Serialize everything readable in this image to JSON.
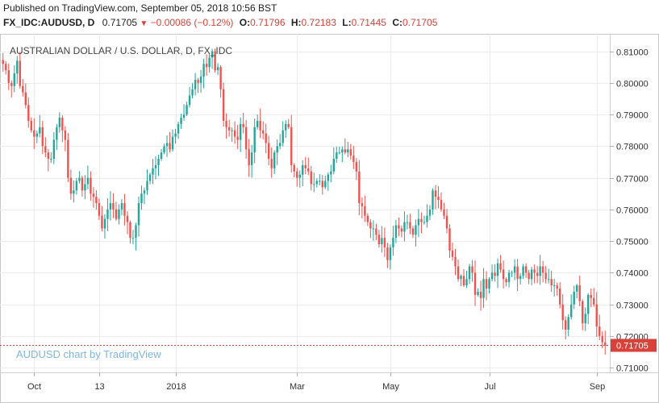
{
  "header": {
    "published": "Published on TradingView.com, September 05, 2018 10:56 BST",
    "symbol": "FX_IDC:AUDUSD, D",
    "last": "0.71705",
    "change": "−0.00086 (−0.12%)",
    "o_label": "O:",
    "o_value": "0.71796",
    "h_label": "H:",
    "h_value": "0.72183",
    "l_label": "L:",
    "l_value": "0.71445",
    "c_label": "C:",
    "c_value": "0.71705"
  },
  "chart_data": {
    "type": "candlestick",
    "title": "AUSTRALIAN DOLLAR / U.S. DOLLAR, D, FX_IDC",
    "watermark": "AUDUSD chart by TradingView",
    "last_price_label": "0.71705",
    "last_price": 0.71705,
    "ylim": [
      0.7085,
      0.8155
    ],
    "y_ticks": [
      0.71,
      0.72,
      0.73,
      0.74,
      0.75,
      0.76,
      0.77,
      0.78,
      0.79,
      0.8,
      0.81
    ],
    "y_tick_labels": [
      "0.71000",
      "0.72000",
      "0.73000",
      "0.74000",
      "0.75000",
      "0.76000",
      "0.77000",
      "0.78000",
      "0.79000",
      "0.80000",
      "0.81000"
    ],
    "x_labels": [
      {
        "label": "Oct",
        "index": 11
      },
      {
        "label": "13",
        "index": 34
      },
      {
        "label": "2018",
        "index": 61
      },
      {
        "label": "Mar",
        "index": 104
      },
      {
        "label": "May",
        "index": 137
      },
      {
        "label": "Jul",
        "index": 172
      },
      {
        "label": "Sep",
        "index": 210
      }
    ],
    "up_color": "#26a69a",
    "down_color": "#ef5350",
    "grid": true,
    "closes": [
      0.806,
      0.804,
      0.8,
      0.799,
      0.803,
      0.807,
      0.799,
      0.797,
      0.793,
      0.788,
      0.785,
      0.783,
      0.784,
      0.786,
      0.78,
      0.778,
      0.776,
      0.776,
      0.782,
      0.786,
      0.789,
      0.785,
      0.782,
      0.77,
      0.765,
      0.766,
      0.769,
      0.77,
      0.766,
      0.768,
      0.77,
      0.765,
      0.764,
      0.762,
      0.758,
      0.754,
      0.757,
      0.76,
      0.762,
      0.76,
      0.757,
      0.76,
      0.762,
      0.758,
      0.756,
      0.751,
      0.751,
      0.755,
      0.762,
      0.765,
      0.766,
      0.769,
      0.771,
      0.773,
      0.774,
      0.776,
      0.778,
      0.78,
      0.781,
      0.779,
      0.783,
      0.784,
      0.787,
      0.789,
      0.79,
      0.793,
      0.796,
      0.798,
      0.801,
      0.8,
      0.802,
      0.806,
      0.805,
      0.808,
      0.81,
      0.804,
      0.805,
      0.798,
      0.788,
      0.786,
      0.785,
      0.785,
      0.783,
      0.782,
      0.787,
      0.786,
      0.779,
      0.774,
      0.778,
      0.786,
      0.788,
      0.785,
      0.784,
      0.781,
      0.776,
      0.773,
      0.778,
      0.78,
      0.781,
      0.785,
      0.787,
      0.786,
      0.774,
      0.772,
      0.77,
      0.771,
      0.774,
      0.773,
      0.772,
      0.768,
      0.768,
      0.769,
      0.769,
      0.767,
      0.769,
      0.771,
      0.772,
      0.776,
      0.778,
      0.778,
      0.779,
      0.778,
      0.779,
      0.777,
      0.775,
      0.772,
      0.762,
      0.761,
      0.758,
      0.756,
      0.754,
      0.754,
      0.752,
      0.749,
      0.751,
      0.748,
      0.744,
      0.748,
      0.751,
      0.755,
      0.754,
      0.753,
      0.756,
      0.756,
      0.754,
      0.752,
      0.755,
      0.757,
      0.756,
      0.756,
      0.758,
      0.76,
      0.766,
      0.764,
      0.763,
      0.76,
      0.758,
      0.754,
      0.747,
      0.745,
      0.742,
      0.738,
      0.739,
      0.736,
      0.738,
      0.742,
      0.74,
      0.733,
      0.734,
      0.732,
      0.738,
      0.735,
      0.738,
      0.74,
      0.739,
      0.743,
      0.741,
      0.738,
      0.737,
      0.74,
      0.74,
      0.742,
      0.738,
      0.739,
      0.742,
      0.74,
      0.738,
      0.741,
      0.74,
      0.739,
      0.742,
      0.74,
      0.738,
      0.738,
      0.736,
      0.736,
      0.735,
      0.73,
      0.725,
      0.722,
      0.726,
      0.73,
      0.734,
      0.736,
      0.731,
      0.724,
      0.727,
      0.733,
      0.732,
      0.73,
      0.723,
      0.72,
      0.718,
      0.717
    ]
  }
}
